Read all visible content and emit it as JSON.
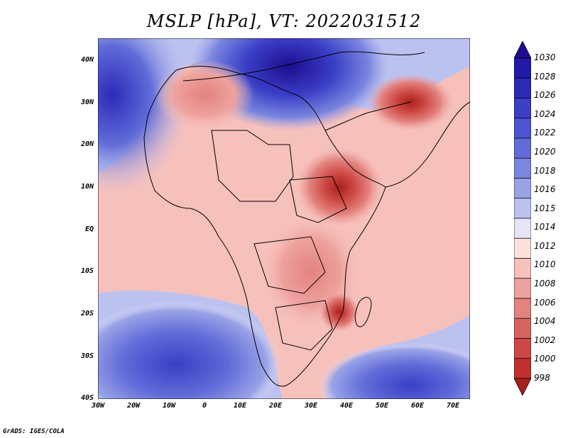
{
  "title": "MSLP [hPa], VT: 2022031512",
  "credit": "GrADS: IGES/COLA",
  "lat_labels": [
    "40N",
    "30N",
    "20N",
    "10N",
    "EQ",
    "10S",
    "20S",
    "30S",
    "40S"
  ],
  "lon_labels": [
    "30W",
    "20W",
    "10W",
    "0",
    "10E",
    "20E",
    "30E",
    "40E",
    "50E",
    "60E",
    "70E"
  ],
  "colorbar": {
    "levels": [
      "1030",
      "1028",
      "1026",
      "1024",
      "1022",
      "1020",
      "1018",
      "1016",
      "1015",
      "1014",
      "1012",
      "1010",
      "1008",
      "1006",
      "1004",
      "1002",
      "1000",
      "998"
    ],
    "colors": [
      "#1d0c8f",
      "#2319a6",
      "#2b2ab8",
      "#3a3fc6",
      "#4b55cf",
      "#616cd8",
      "#7b86df",
      "#9aa3e7",
      "#bcc2f0",
      "#e6e4f5",
      "#fbe0dc",
      "#f6c0bb",
      "#eea29d",
      "#e3827e",
      "#d86460",
      "#cd4844",
      "#c0302c",
      "#a8201c"
    ]
  }
}
